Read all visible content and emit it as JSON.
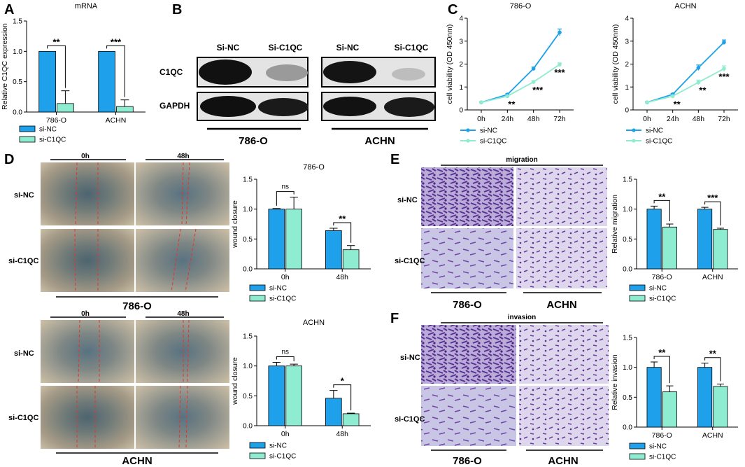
{
  "panels": {
    "A": "A",
    "B": "B",
    "C": "C",
    "D": "D",
    "E": "E",
    "F": "F"
  },
  "colors": {
    "siNC": "#1ea1ea",
    "siC1QC": "#8eecd0",
    "axis": "#000000",
    "redline": "#e8332a"
  },
  "panelB": {
    "lane_labels": [
      "Si-NC",
      "Si-C1QC",
      "Si-NC",
      "Si-C1QC"
    ],
    "row_labels": [
      "C1QC",
      "GAPDH"
    ],
    "cell_lines": [
      "786-O",
      "ACHN"
    ]
  },
  "panelD": {
    "time_labels": [
      "0h",
      "48h"
    ],
    "row_labels": [
      "si-NC",
      "si-C1QC"
    ],
    "cell_lines": [
      "786-O",
      "ACHN"
    ]
  },
  "panelE": {
    "header": "migration",
    "row_labels": [
      "si-NC",
      "si-C1QC"
    ],
    "cell_lines": [
      "786-O",
      "ACHN"
    ]
  },
  "panelF": {
    "header": "invasion",
    "row_labels": [
      "si-NC",
      "si-C1QC"
    ],
    "cell_lines": [
      "786-O",
      "ACHN"
    ]
  },
  "chart_data": [
    {
      "id": "A",
      "type": "bar",
      "title": "mRNA",
      "ylabel": "Relative C1QC expression",
      "categories": [
        "786-O",
        "ACHN"
      ],
      "ylim": [
        0,
        1.5
      ],
      "yticks": [
        0.0,
        0.5,
        1.0,
        1.5
      ],
      "tick_decimals": 1,
      "series": [
        {
          "name": "si-NC",
          "values": [
            1.0,
            1.0
          ],
          "errors": [
            0,
            0
          ]
        },
        {
          "name": "si-C1QC",
          "values": [
            0.14,
            0.09
          ],
          "errors": [
            0.21,
            0.11
          ]
        }
      ],
      "significance": [
        "**",
        "***"
      ]
    },
    {
      "id": "C1",
      "type": "line",
      "title": "786-O",
      "ylabel": "cell viability (OD 450nm)",
      "categories": [
        "0h",
        "24h",
        "48h",
        "72h"
      ],
      "ylim": [
        0,
        4
      ],
      "yticks": [
        0,
        1,
        2,
        3,
        4
      ],
      "tick_decimals": 0,
      "series": [
        {
          "name": "si-NC",
          "values": [
            0.33,
            0.67,
            1.8,
            3.38
          ],
          "errors": [
            0.03,
            0.04,
            0.07,
            0.15
          ]
        },
        {
          "name": "si-C1QC",
          "values": [
            0.33,
            0.6,
            1.22,
            1.98
          ],
          "errors": [
            0.03,
            0.04,
            0.05,
            0.07
          ]
        }
      ],
      "significance": [
        "",
        "**",
        "***",
        "***"
      ]
    },
    {
      "id": "C2",
      "type": "line",
      "title": "ACHN",
      "ylabel": "cell viability (OD 450nm)",
      "categories": [
        "0h",
        "24h",
        "48h",
        "72h"
      ],
      "ylim": [
        0,
        4
      ],
      "yticks": [
        0,
        1,
        2,
        3,
        4
      ],
      "tick_decimals": 0,
      "series": [
        {
          "name": "si-NC",
          "values": [
            0.33,
            0.68,
            1.84,
            2.95
          ],
          "errors": [
            0.03,
            0.04,
            0.12,
            0.1
          ]
        },
        {
          "name": "si-C1QC",
          "values": [
            0.33,
            0.6,
            1.2,
            1.8
          ],
          "errors": [
            0.03,
            0.04,
            0.1,
            0.12
          ]
        }
      ],
      "significance": [
        "",
        "**",
        "**",
        "***"
      ]
    },
    {
      "id": "D1",
      "type": "bar",
      "title": "786-O",
      "ylabel": "wound closure",
      "categories": [
        "0h",
        "48h"
      ],
      "ylim": [
        0,
        1.5
      ],
      "yticks": [
        0.0,
        0.5,
        1.0,
        1.5
      ],
      "tick_decimals": 1,
      "series": [
        {
          "name": "si-NC",
          "values": [
            1.0,
            0.64
          ],
          "errors": [
            0.01,
            0.04
          ]
        },
        {
          "name": "si-C1QC",
          "values": [
            1.0,
            0.32
          ],
          "errors": [
            0.2,
            0.07
          ]
        }
      ],
      "significance": [
        "ns",
        "**"
      ]
    },
    {
      "id": "D2",
      "type": "bar",
      "title": "ACHN",
      "ylabel": "wound closure",
      "categories": [
        "0h",
        "48h"
      ],
      "ylim": [
        0,
        1.5
      ],
      "yticks": [
        0.0,
        0.5,
        1.0,
        1.5
      ],
      "tick_decimals": 1,
      "series": [
        {
          "name": "si-NC",
          "values": [
            1.0,
            0.46
          ],
          "errors": [
            0.06,
            0.13
          ]
        },
        {
          "name": "si-C1QC",
          "values": [
            1.0,
            0.2
          ],
          "errors": [
            0.03,
            0.01
          ]
        }
      ],
      "significance": [
        "ns",
        "*"
      ]
    },
    {
      "id": "E",
      "type": "bar",
      "title": "",
      "ylabel": "Relative migration",
      "categories": [
        "786-O",
        "ACHN"
      ],
      "ylim": [
        0,
        1.5
      ],
      "yticks": [
        0.0,
        0.5,
        1.0,
        1.5
      ],
      "tick_decimals": 1,
      "series": [
        {
          "name": "si-NC",
          "values": [
            1.0,
            1.0
          ],
          "errors": [
            0.05,
            0.03
          ]
        },
        {
          "name": "si-C1QC",
          "values": [
            0.7,
            0.66
          ],
          "errors": [
            0.05,
            0.02
          ]
        }
      ],
      "significance": [
        "**",
        "***"
      ]
    },
    {
      "id": "F",
      "type": "bar",
      "title": "",
      "ylabel": "Relative invasion",
      "categories": [
        "786-O",
        "ACHN"
      ],
      "ylim": [
        0,
        1.5
      ],
      "yticks": [
        0.0,
        0.5,
        1.0,
        1.5
      ],
      "tick_decimals": 1,
      "series": [
        {
          "name": "si-NC",
          "values": [
            1.0,
            1.0
          ],
          "errors": [
            0.09,
            0.07
          ]
        },
        {
          "name": "si-C1QC",
          "values": [
            0.59,
            0.68
          ],
          "errors": [
            0.1,
            0.04
          ]
        }
      ],
      "significance": [
        "**",
        "**"
      ]
    }
  ]
}
